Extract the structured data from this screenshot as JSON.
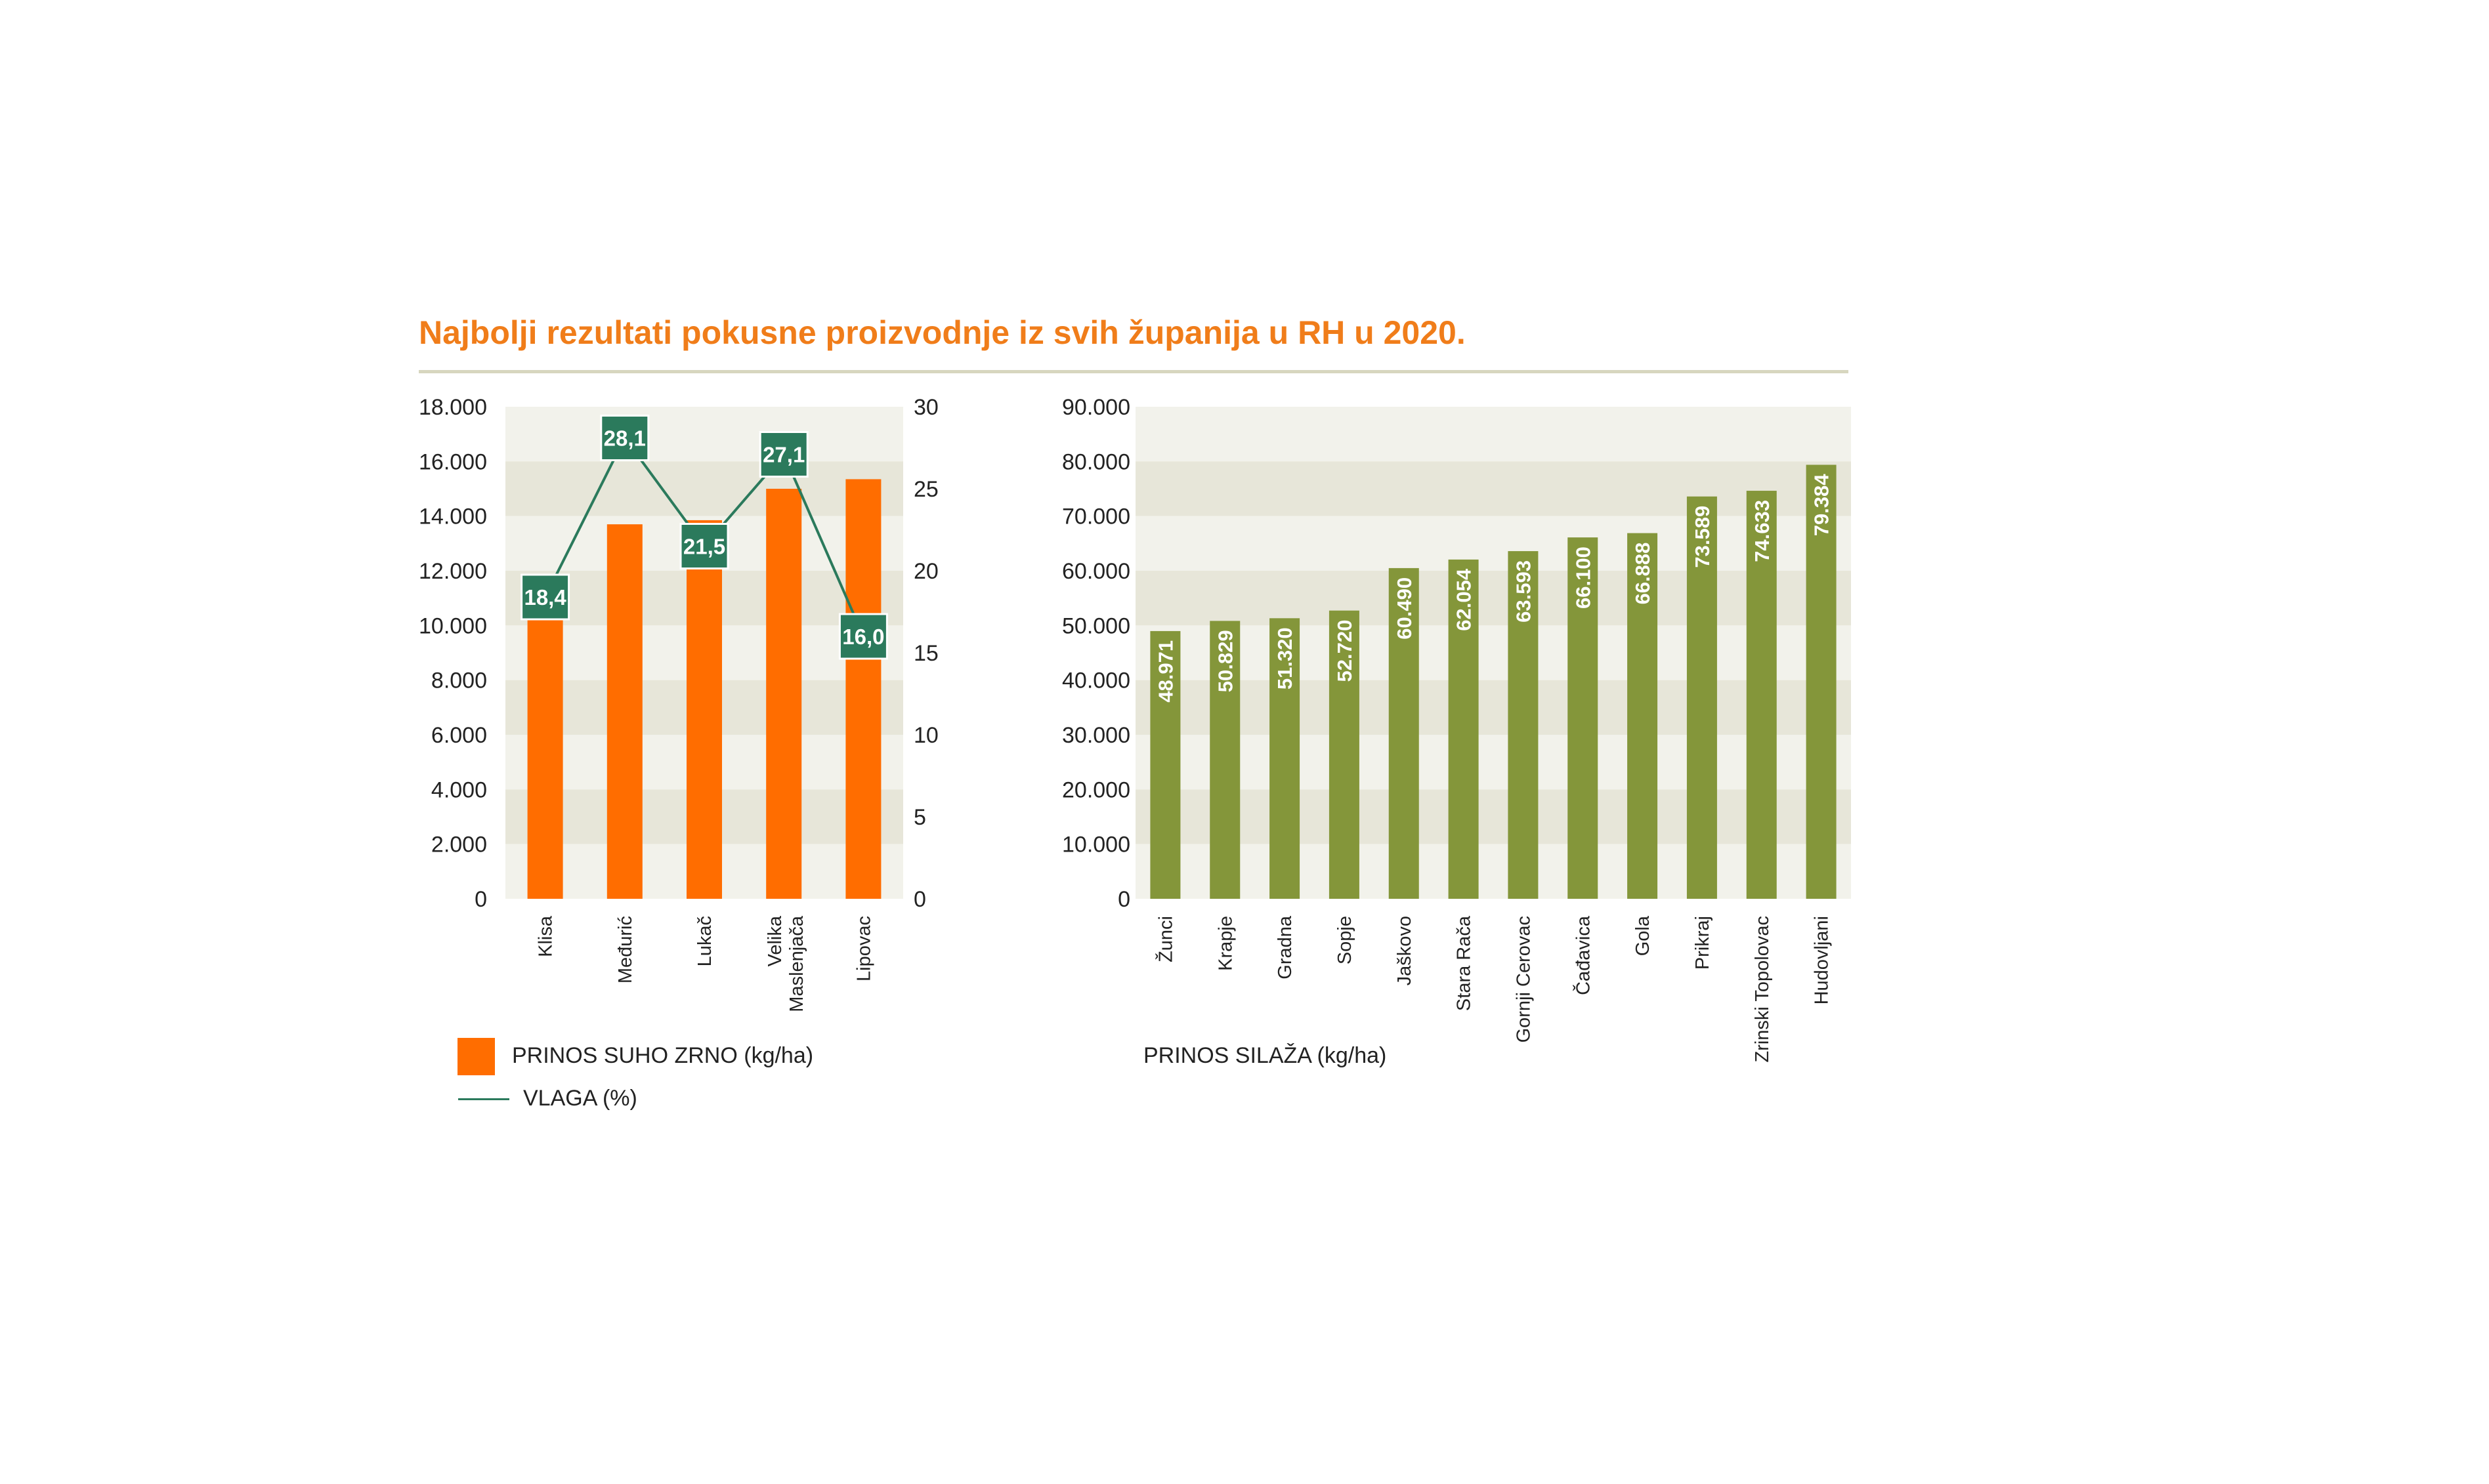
{
  "title": "Najbolji rezultati pokusne proizvodnje iz svih županija u RH u 2020.",
  "colors": {
    "accent": "#f07d1a",
    "grain_bar": "#ff6d00",
    "moisture": "#2b7a5c",
    "silage_bar": "#84963a",
    "band_light": "#f2f2eb",
    "band_dark": "#e7e6d9"
  },
  "chart_data": [
    {
      "type": "bar",
      "categories": [
        "Klisa",
        "Međurić",
        "Lukač",
        "Velika Maslenjača",
        "Lipovac"
      ],
      "category_lines": [
        [
          "Klisa"
        ],
        [
          "Međurić"
        ],
        [
          "Lukač"
        ],
        [
          "Velika",
          "Maslenjača"
        ],
        [
          "Lipovac"
        ]
      ],
      "series": [
        {
          "name": "PRINOS SUHO ZRNO (kg/ha)",
          "type": "bar",
          "axis": "left",
          "values": [
            11450,
            13700,
            13850,
            15000,
            15350
          ]
        },
        {
          "name": "VLAGA (%)",
          "type": "line",
          "axis": "right",
          "values": [
            18.4,
            28.1,
            21.5,
            27.1,
            16.0
          ],
          "labels": [
            "18,4",
            "28,1",
            "21,5",
            "27,1",
            "16,0"
          ]
        }
      ],
      "ylim": [
        0,
        18000
      ],
      "y_ticks": [
        "18.000",
        "16.000",
        "14.000",
        "12.000",
        "10.000",
        "8.000",
        "6.000",
        "4.000",
        "2.000",
        "0"
      ],
      "y2lim": [
        0,
        30
      ],
      "y2_ticks": [
        "30",
        "25",
        "20",
        "15",
        "10",
        "5",
        "0"
      ],
      "grid": false,
      "legend": "bottom-left"
    },
    {
      "type": "bar",
      "categories": [
        "Žunci",
        "Krapje",
        "Gradna",
        "Sopje",
        "Jaškovo",
        "Stara Rača",
        "Gornji Cerovac",
        "Čađavica",
        "Gola",
        "Prikraj",
        "Zrinski Topolovac",
        "Hudovljani"
      ],
      "series": [
        {
          "name": "PRINOS SILAŽA (kg/ha)",
          "values": [
            48971,
            50829,
            51320,
            52720,
            60490,
            62054,
            63593,
            66100,
            66888,
            73589,
            74633,
            79384
          ],
          "labels": [
            "48.971",
            "50.829",
            "51.320",
            "52.720",
            "60.490",
            "62.054",
            "63.593",
            "66.100",
            "66.888",
            "73.589",
            "74.633",
            "79.384"
          ]
        }
      ],
      "ylim": [
        0,
        90000
      ],
      "y_ticks": [
        "90.000",
        "80.000",
        "70.000",
        "60.000",
        "50.000",
        "40.000",
        "30.000",
        "20.000",
        "10.000",
        "0"
      ],
      "grid": false,
      "legend": "bottom-left"
    }
  ],
  "legend": {
    "grain": "PRINOS SUHO ZRNO (kg/ha)",
    "moisture": "VLAGA (%)",
    "silage": "PRINOS SILAŽA (kg/ha)"
  }
}
